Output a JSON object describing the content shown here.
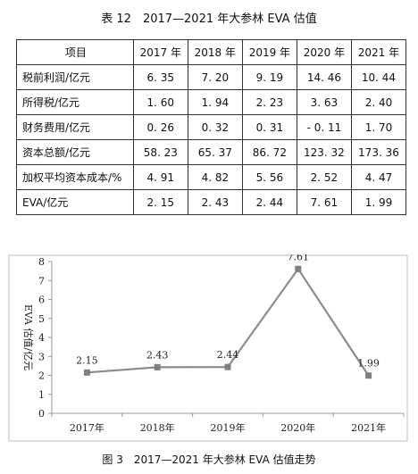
{
  "table": {
    "caption": "表 12　2017—2021 年大参林 EVA 估值",
    "header": [
      "项目",
      "2017 年",
      "2018 年",
      "2019 年",
      "2020 年",
      "2021 年"
    ],
    "rows": [
      {
        "label": "税前利润/亿元",
        "values": [
          "6. 35",
          "7. 20",
          "9. 19",
          "14. 46",
          "10. 44"
        ]
      },
      {
        "label": "所得税/亿元",
        "values": [
          "1. 60",
          "1. 94",
          "2. 23",
          "3. 63",
          "2. 40"
        ]
      },
      {
        "label": "财务费用/亿元",
        "values": [
          "0. 26",
          "0. 32",
          "0. 31",
          "- 0. 11",
          "1. 70"
        ]
      },
      {
        "label": "资本总额/亿元",
        "values": [
          "58. 23",
          "65. 37",
          "86. 72",
          "123. 32",
          "173. 36"
        ]
      },
      {
        "label": "加权平均资本成本/%",
        "values": [
          "4. 91",
          "4. 82",
          "5. 56",
          "2. 52",
          "4. 47"
        ]
      },
      {
        "label": "EVA/亿元",
        "values": [
          "2. 15",
          "2. 43",
          "2. 44",
          "7. 61",
          "1. 99"
        ]
      }
    ]
  },
  "figure_caption": "图 3　2017—2021 年大参林 EVA 估值走势",
  "chart_data": {
    "type": "line",
    "title": "",
    "xlabel": "",
    "ylabel": "EVA 估值/亿元",
    "categories": [
      "2017年",
      "2018年",
      "2019年",
      "2020年",
      "2021年"
    ],
    "series": [
      {
        "values": [
          2.15,
          2.43,
          2.44,
          7.61,
          1.99
        ]
      }
    ],
    "data_labels": [
      "2.15",
      "2.43",
      "2.44",
      "7.61",
      "1.99"
    ],
    "ylim": [
      0,
      8
    ],
    "yticks": [
      "0",
      "1",
      "2",
      "3",
      "4",
      "5",
      "6",
      "7",
      "8"
    ],
    "grid": false,
    "legend": "none",
    "line_color": "#8c8c8c",
    "marker_color": "#7f7f7f"
  }
}
